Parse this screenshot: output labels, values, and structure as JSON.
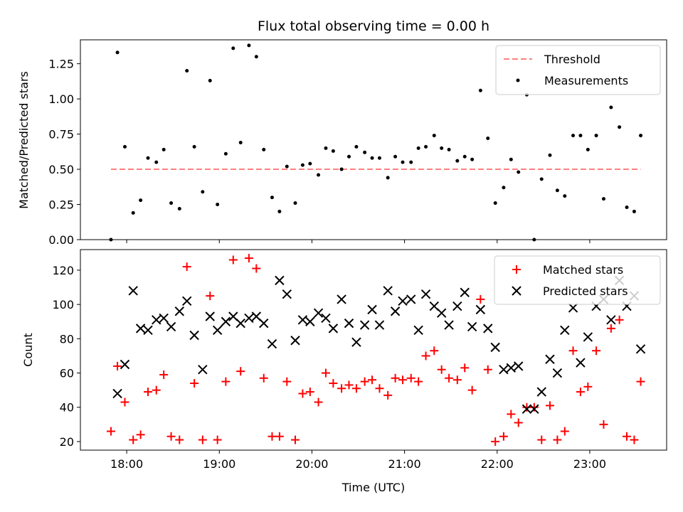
{
  "chart_data": [
    {
      "type": "scatter",
      "title": "Flux total observing time = 0.00 h",
      "ylabel": "Matched/Predicted stars",
      "ylim": [
        0,
        1.42
      ],
      "yticks": [
        "0.00",
        "0.25",
        "0.50",
        "0.75",
        "1.00",
        "1.25"
      ],
      "ytick_values": [
        0,
        0.25,
        0.5,
        0.75,
        1.0,
        1.25
      ],
      "xlim": [
        17.5,
        23.83
      ],
      "legend_position": "top-right",
      "threshold": {
        "name": "Threshold",
        "value": 0.5,
        "x_start": 17.83,
        "x_end": 23.55,
        "color": "#ff8080"
      },
      "series": [
        {
          "name": "Measurements",
          "color": "#000000",
          "x": [
            17.83,
            17.9,
            17.98,
            18.07,
            18.15,
            18.23,
            18.32,
            18.4,
            18.48,
            18.57,
            18.65,
            18.73,
            18.82,
            18.9,
            18.98,
            19.07,
            19.15,
            19.23,
            19.32,
            19.4,
            19.48,
            19.57,
            19.65,
            19.73,
            19.82,
            19.9,
            19.98,
            20.07,
            20.15,
            20.23,
            20.32,
            20.4,
            20.48,
            20.57,
            20.65,
            20.73,
            20.82,
            20.9,
            20.98,
            21.07,
            21.15,
            21.23,
            21.32,
            21.4,
            21.48,
            21.57,
            21.65,
            21.73,
            21.82,
            21.9,
            21.98,
            22.07,
            22.15,
            22.23,
            22.32,
            22.4,
            22.48,
            22.57,
            22.65,
            22.73,
            22.82,
            22.9,
            22.98,
            23.07,
            23.15,
            23.23,
            23.32,
            23.4,
            23.48,
            23.55
          ],
          "y": [
            0.0,
            1.33,
            0.66,
            0.19,
            0.28,
            0.58,
            0.55,
            0.64,
            0.26,
            0.22,
            1.2,
            0.66,
            0.34,
            1.13,
            0.25,
            0.61,
            1.36,
            0.69,
            1.38,
            1.3,
            0.64,
            0.3,
            0.2,
            0.52,
            0.26,
            0.53,
            0.54,
            0.46,
            0.65,
            0.63,
            0.5,
            0.59,
            0.66,
            0.62,
            0.58,
            0.58,
            0.44,
            0.59,
            0.55,
            0.55,
            0.65,
            0.66,
            0.74,
            0.65,
            0.64,
            0.56,
            0.59,
            0.57,
            1.06,
            0.72,
            0.26,
            0.37,
            0.57,
            0.48,
            1.03,
            0.0,
            0.43,
            0.6,
            0.35,
            0.31,
            0.74,
            0.74,
            0.64,
            0.74,
            0.29,
            0.94,
            0.8,
            0.23,
            0.2,
            0.74
          ]
        }
      ]
    },
    {
      "type": "scatter",
      "xlabel": "Time (UTC)",
      "ylabel": "Count",
      "ylim": [
        15,
        132
      ],
      "yticks": [
        "20",
        "40",
        "60",
        "80",
        "100",
        "120"
      ],
      "ytick_values": [
        20,
        40,
        60,
        80,
        100,
        120
      ],
      "xlim": [
        17.5,
        23.83
      ],
      "xticks": [
        "18:00",
        "19:00",
        "20:00",
        "21:00",
        "22:00",
        "23:00"
      ],
      "xtick_values": [
        18,
        19,
        20,
        21,
        22,
        23
      ],
      "legend_position": "top-right",
      "series": [
        {
          "name": "Matched stars",
          "color": "#ff0000",
          "marker": "plus",
          "x": [
            17.83,
            17.9,
            17.98,
            18.07,
            18.15,
            18.23,
            18.32,
            18.4,
            18.48,
            18.57,
            18.65,
            18.73,
            18.82,
            18.9,
            18.98,
            19.07,
            19.15,
            19.23,
            19.32,
            19.4,
            19.48,
            19.57,
            19.65,
            19.73,
            19.82,
            19.9,
            19.98,
            20.07,
            20.15,
            20.23,
            20.32,
            20.4,
            20.48,
            20.57,
            20.65,
            20.73,
            20.82,
            20.9,
            20.98,
            21.07,
            21.15,
            21.23,
            21.32,
            21.4,
            21.48,
            21.57,
            21.65,
            21.73,
            21.82,
            21.9,
            21.98,
            22.07,
            22.15,
            22.23,
            22.32,
            22.4,
            22.48,
            22.57,
            22.65,
            22.73,
            22.82,
            22.9,
            22.98,
            23.07,
            23.15,
            23.23,
            23.32,
            23.4,
            23.48,
            23.55
          ],
          "y": [
            26,
            64,
            43,
            21,
            24,
            49,
            50,
            59,
            23,
            21,
            122,
            54,
            21,
            105,
            21,
            55,
            126,
            61,
            127,
            121,
            57,
            23,
            23,
            55,
            21,
            48,
            49,
            43,
            60,
            54,
            51,
            53,
            51,
            55,
            56,
            51,
            47,
            57,
            56,
            57,
            55,
            70,
            73,
            62,
            57,
            56,
            63,
            50,
            103,
            62,
            20,
            23,
            36,
            31,
            40,
            40,
            21,
            41,
            21,
            26,
            73,
            49,
            52,
            73,
            30,
            86,
            91,
            23,
            21,
            55
          ]
        },
        {
          "name": "Predicted stars",
          "color": "#000000",
          "marker": "x",
          "x": [
            17.9,
            17.98,
            18.07,
            18.15,
            18.23,
            18.32,
            18.4,
            18.48,
            18.57,
            18.65,
            18.73,
            18.82,
            18.9,
            18.98,
            19.07,
            19.15,
            19.23,
            19.32,
            19.4,
            19.48,
            19.57,
            19.65,
            19.73,
            19.82,
            19.9,
            19.98,
            20.07,
            20.15,
            20.23,
            20.32,
            20.4,
            20.48,
            20.57,
            20.65,
            20.73,
            20.82,
            20.9,
            20.98,
            21.07,
            21.15,
            21.23,
            21.32,
            21.4,
            21.48,
            21.57,
            21.65,
            21.73,
            21.82,
            21.9,
            21.98,
            22.07,
            22.15,
            22.23,
            22.32,
            22.4,
            22.48,
            22.57,
            22.65,
            22.73,
            22.82,
            22.9,
            22.98,
            23.07,
            23.15,
            23.23,
            23.32,
            23.4,
            23.48,
            23.55
          ],
          "y": [
            48,
            65,
            108,
            86,
            85,
            91,
            92,
            87,
            96,
            102,
            82,
            62,
            93,
            85,
            90,
            93,
            89,
            92,
            93,
            89,
            77,
            114,
            106,
            79,
            91,
            90,
            95,
            92,
            86,
            103,
            89,
            78,
            88,
            97,
            88,
            108,
            96,
            102,
            103,
            85,
            106,
            99,
            95,
            88,
            99,
            107,
            87,
            97,
            86,
            75,
            62,
            63,
            64,
            39,
            39,
            49,
            68,
            60,
            85,
            98,
            66,
            81,
            99,
            103,
            91,
            114,
            99,
            105,
            74
          ]
        }
      ]
    }
  ]
}
